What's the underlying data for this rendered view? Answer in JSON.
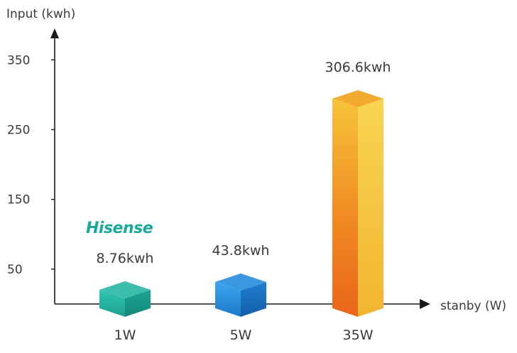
{
  "chart_data": {
    "type": "bar",
    "title": "",
    "ylabel": "Input (kwh)",
    "xlabel": "stanby (W)",
    "categories": [
      "1W",
      "5W",
      "35W"
    ],
    "values": [
      8.76,
      43.8,
      306.6
    ],
    "data_labels": [
      "8.76kwh",
      "43.8kwh",
      "306.6kwh"
    ],
    "yticks": [
      50,
      150,
      250,
      350
    ],
    "ytick_labels": [
      "50",
      "150",
      "250",
      "350"
    ],
    "ylim": [
      0,
      400
    ],
    "grid": false,
    "bar_colors": [
      "#2bb8a6",
      "#2a8fdc",
      "#f2a31e"
    ],
    "annotation": "Hisense",
    "annotation_color": "#1aa89a"
  }
}
